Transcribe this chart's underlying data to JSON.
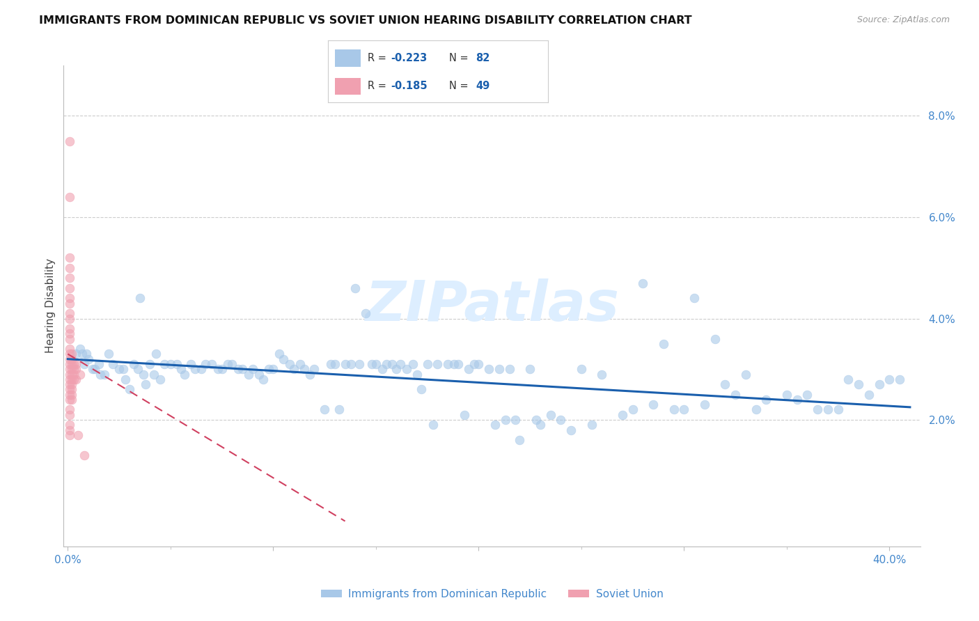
{
  "title": "IMMIGRANTS FROM DOMINICAN REPUBLIC VS SOVIET UNION HEARING DISABILITY CORRELATION CHART",
  "source": "Source: ZipAtlas.com",
  "ylabel": "Hearing Disability",
  "right_ytick_labels": [
    "2.0%",
    "4.0%",
    "6.0%",
    "8.0%"
  ],
  "right_ytick_values": [
    0.02,
    0.04,
    0.06,
    0.08
  ],
  "xtick_labels": [
    "0.0%",
    "",
    "",
    "",
    "40.0%"
  ],
  "xtick_values": [
    0.0,
    0.1,
    0.2,
    0.3,
    0.4
  ],
  "xlim": [
    -0.002,
    0.415
  ],
  "ylim": [
    -0.005,
    0.09
  ],
  "legend_label_bottom": [
    "Immigrants from Dominican Republic",
    "Soviet Union"
  ],
  "blue_color": "#a8c8e8",
  "pink_color": "#f0a0b0",
  "trend_blue_color": "#1a5fad",
  "trend_pink_color": "#d04060",
  "watermark_color": "#ddeeff",
  "title_color": "#111111",
  "axis_color": "#4488cc",
  "blue_dots": [
    [
      0.004,
      0.033
    ],
    [
      0.006,
      0.034
    ],
    [
      0.007,
      0.033
    ],
    [
      0.008,
      0.031
    ],
    [
      0.009,
      0.033
    ],
    [
      0.01,
      0.032
    ],
    [
      0.012,
      0.03
    ],
    [
      0.013,
      0.03
    ],
    [
      0.015,
      0.031
    ],
    [
      0.016,
      0.029
    ],
    [
      0.018,
      0.029
    ],
    [
      0.02,
      0.033
    ],
    [
      0.022,
      0.031
    ],
    [
      0.025,
      0.03
    ],
    [
      0.027,
      0.03
    ],
    [
      0.028,
      0.028
    ],
    [
      0.03,
      0.026
    ],
    [
      0.032,
      0.031
    ],
    [
      0.034,
      0.03
    ],
    [
      0.035,
      0.044
    ],
    [
      0.037,
      0.029
    ],
    [
      0.038,
      0.027
    ],
    [
      0.04,
      0.031
    ],
    [
      0.042,
      0.029
    ],
    [
      0.043,
      0.033
    ],
    [
      0.045,
      0.028
    ],
    [
      0.047,
      0.031
    ],
    [
      0.05,
      0.031
    ],
    [
      0.053,
      0.031
    ],
    [
      0.055,
      0.03
    ],
    [
      0.057,
      0.029
    ],
    [
      0.06,
      0.031
    ],
    [
      0.062,
      0.03
    ],
    [
      0.065,
      0.03
    ],
    [
      0.067,
      0.031
    ],
    [
      0.07,
      0.031
    ],
    [
      0.073,
      0.03
    ],
    [
      0.075,
      0.03
    ],
    [
      0.078,
      0.031
    ],
    [
      0.08,
      0.031
    ],
    [
      0.083,
      0.03
    ],
    [
      0.085,
      0.03
    ],
    [
      0.088,
      0.029
    ],
    [
      0.09,
      0.03
    ],
    [
      0.093,
      0.029
    ],
    [
      0.095,
      0.028
    ],
    [
      0.098,
      0.03
    ],
    [
      0.1,
      0.03
    ],
    [
      0.103,
      0.033
    ],
    [
      0.105,
      0.032
    ],
    [
      0.108,
      0.031
    ],
    [
      0.11,
      0.03
    ],
    [
      0.113,
      0.031
    ],
    [
      0.115,
      0.03
    ],
    [
      0.118,
      0.029
    ],
    [
      0.12,
      0.03
    ],
    [
      0.125,
      0.022
    ],
    [
      0.128,
      0.031
    ],
    [
      0.13,
      0.031
    ],
    [
      0.132,
      0.022
    ],
    [
      0.135,
      0.031
    ],
    [
      0.138,
      0.031
    ],
    [
      0.14,
      0.046
    ],
    [
      0.142,
      0.031
    ],
    [
      0.145,
      0.041
    ],
    [
      0.148,
      0.031
    ],
    [
      0.15,
      0.031
    ],
    [
      0.153,
      0.03
    ],
    [
      0.155,
      0.031
    ],
    [
      0.158,
      0.031
    ],
    [
      0.16,
      0.03
    ],
    [
      0.162,
      0.031
    ],
    [
      0.165,
      0.03
    ],
    [
      0.168,
      0.031
    ],
    [
      0.17,
      0.029
    ],
    [
      0.172,
      0.026
    ],
    [
      0.175,
      0.031
    ],
    [
      0.178,
      0.019
    ],
    [
      0.18,
      0.031
    ],
    [
      0.185,
      0.031
    ],
    [
      0.188,
      0.031
    ],
    [
      0.19,
      0.031
    ],
    [
      0.193,
      0.021
    ],
    [
      0.195,
      0.03
    ],
    [
      0.198,
      0.031
    ],
    [
      0.2,
      0.031
    ],
    [
      0.205,
      0.03
    ],
    [
      0.208,
      0.019
    ],
    [
      0.21,
      0.03
    ],
    [
      0.213,
      0.02
    ],
    [
      0.215,
      0.03
    ],
    [
      0.218,
      0.02
    ],
    [
      0.22,
      0.016
    ],
    [
      0.225,
      0.03
    ],
    [
      0.228,
      0.02
    ],
    [
      0.23,
      0.019
    ],
    [
      0.235,
      0.021
    ],
    [
      0.24,
      0.02
    ],
    [
      0.245,
      0.018
    ],
    [
      0.25,
      0.03
    ],
    [
      0.255,
      0.019
    ],
    [
      0.26,
      0.029
    ],
    [
      0.27,
      0.021
    ],
    [
      0.275,
      0.022
    ],
    [
      0.28,
      0.047
    ],
    [
      0.285,
      0.023
    ],
    [
      0.29,
      0.035
    ],
    [
      0.295,
      0.022
    ],
    [
      0.3,
      0.022
    ],
    [
      0.305,
      0.044
    ],
    [
      0.31,
      0.023
    ],
    [
      0.315,
      0.036
    ],
    [
      0.32,
      0.027
    ],
    [
      0.325,
      0.025
    ],
    [
      0.33,
      0.029
    ],
    [
      0.335,
      0.022
    ],
    [
      0.34,
      0.024
    ],
    [
      0.35,
      0.025
    ],
    [
      0.355,
      0.024
    ],
    [
      0.36,
      0.025
    ],
    [
      0.365,
      0.022
    ],
    [
      0.37,
      0.022
    ],
    [
      0.375,
      0.022
    ],
    [
      0.38,
      0.028
    ],
    [
      0.385,
      0.027
    ],
    [
      0.39,
      0.025
    ],
    [
      0.395,
      0.027
    ],
    [
      0.4,
      0.028
    ],
    [
      0.405,
      0.028
    ]
  ],
  "pink_dots": [
    [
      0.001,
      0.075
    ],
    [
      0.001,
      0.064
    ],
    [
      0.001,
      0.052
    ],
    [
      0.001,
      0.05
    ],
    [
      0.001,
      0.048
    ],
    [
      0.001,
      0.046
    ],
    [
      0.001,
      0.044
    ],
    [
      0.001,
      0.043
    ],
    [
      0.001,
      0.041
    ],
    [
      0.001,
      0.04
    ],
    [
      0.001,
      0.038
    ],
    [
      0.001,
      0.037
    ],
    [
      0.001,
      0.036
    ],
    [
      0.001,
      0.034
    ],
    [
      0.001,
      0.033
    ],
    [
      0.001,
      0.032
    ],
    [
      0.001,
      0.031
    ],
    [
      0.001,
      0.03
    ],
    [
      0.001,
      0.029
    ],
    [
      0.001,
      0.028
    ],
    [
      0.001,
      0.027
    ],
    [
      0.001,
      0.026
    ],
    [
      0.001,
      0.025
    ],
    [
      0.001,
      0.024
    ],
    [
      0.001,
      0.022
    ],
    [
      0.001,
      0.021
    ],
    [
      0.001,
      0.019
    ],
    [
      0.001,
      0.018
    ],
    [
      0.001,
      0.017
    ],
    [
      0.002,
      0.033
    ],
    [
      0.002,
      0.032
    ],
    [
      0.002,
      0.031
    ],
    [
      0.002,
      0.03
    ],
    [
      0.002,
      0.029
    ],
    [
      0.002,
      0.028
    ],
    [
      0.002,
      0.027
    ],
    [
      0.002,
      0.026
    ],
    [
      0.002,
      0.025
    ],
    [
      0.002,
      0.024
    ],
    [
      0.003,
      0.031
    ],
    [
      0.003,
      0.03
    ],
    [
      0.003,
      0.029
    ],
    [
      0.003,
      0.028
    ],
    [
      0.004,
      0.031
    ],
    [
      0.004,
      0.03
    ],
    [
      0.004,
      0.028
    ],
    [
      0.005,
      0.017
    ],
    [
      0.006,
      0.029
    ],
    [
      0.008,
      0.013
    ]
  ],
  "blue_trend_x": [
    0.0,
    0.41
  ],
  "blue_trend_y": [
    0.032,
    0.0225
  ],
  "pink_trend_x": [
    0.0,
    0.135
  ],
  "pink_trend_y": [
    0.033,
    0.0
  ]
}
